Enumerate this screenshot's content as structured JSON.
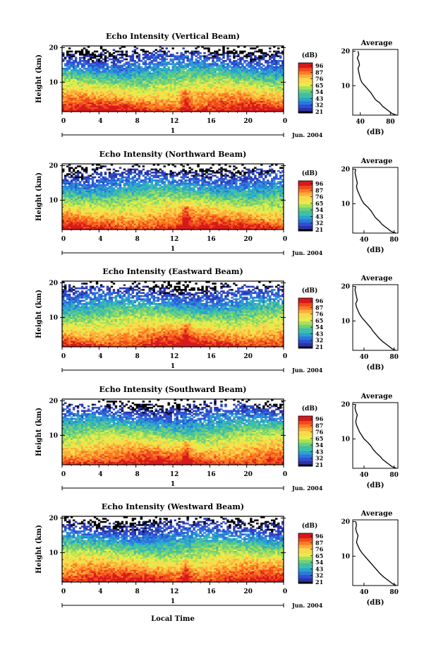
{
  "figure": {
    "xlabel": "Local Time",
    "date_label": "1",
    "month_label": "Jun. 2004",
    "colorbar_unit": "(dB)",
    "colorbar_ticks": [
      "96",
      "87",
      "76",
      "65",
      "54",
      "43",
      "32",
      "21"
    ],
    "colorbar_colors": [
      "#d7191c",
      "#f04a1c",
      "#fb7b22",
      "#fdae3d",
      "#fbd84a",
      "#e4ee4c",
      "#a8e05b",
      "#6fcf7a",
      "#3fbfa6",
      "#2aa2d1",
      "#2d78dc",
      "#2f4fd3",
      "#2b34a8"
    ],
    "profile_title": "Average",
    "profile_xlabel": "(dB)"
  },
  "chart_data": [
    {
      "type": "heatmap",
      "title": "Echo Intensity (Vertical Beam)",
      "ylabel": "Height (km)",
      "x_ticks": [
        "0",
        "4",
        "8",
        "12",
        "16",
        "20",
        "0"
      ],
      "y_ticks": [
        "20",
        "10"
      ],
      "xlim": [
        0,
        24
      ],
      "ylim": [
        1.5,
        20.5
      ],
      "colorbar": {
        "unit": "dB",
        "range": [
          21,
          96
        ]
      },
      "profile": {
        "title": "Average",
        "x_ticks": [
          "40",
          "80"
        ],
        "y_ticks": [
          "20",
          "10"
        ],
        "xlim": [
          30,
          90
        ],
        "heights": [
          1.5,
          2,
          3,
          4,
          5,
          6,
          7,
          8,
          9,
          10,
          11,
          12,
          13,
          14,
          15,
          16,
          17,
          18,
          19,
          20
        ],
        "values": [
          88,
          82,
          76,
          70,
          66,
          60,
          57,
          54,
          50,
          46,
          42,
          40,
          39,
          38,
          37,
          39,
          38,
          36,
          38,
          37
        ]
      }
    },
    {
      "type": "heatmap",
      "title": "Echo Intensity (Northward Beam)",
      "ylabel": "Height (km)",
      "x_ticks": [
        "0",
        "4",
        "8",
        "12",
        "16",
        "20",
        "0"
      ],
      "y_ticks": [
        "20",
        "10"
      ],
      "xlim": [
        0,
        24
      ],
      "ylim": [
        1.5,
        20.5
      ],
      "colorbar": {
        "unit": "dB",
        "range": [
          21,
          96
        ]
      },
      "profile": {
        "title": "Average",
        "x_ticks": [
          "40",
          "80"
        ],
        "y_ticks": [
          "20",
          "10"
        ],
        "xlim": [
          25,
          85
        ],
        "heights": [
          1.5,
          2,
          3,
          4,
          5,
          6,
          7,
          8,
          9,
          10,
          11,
          12,
          13,
          14,
          15,
          16,
          17,
          18,
          19,
          20
        ],
        "values": [
          82,
          76,
          70,
          64,
          60,
          55,
          52,
          49,
          45,
          40,
          37,
          35,
          33,
          31,
          30,
          31,
          30,
          29,
          28,
          29
        ]
      }
    },
    {
      "type": "heatmap",
      "title": "Echo Intensity (Eastward Beam)",
      "ylabel": "Height (km)",
      "x_ticks": [
        "0",
        "4",
        "8",
        "12",
        "16",
        "20",
        "0"
      ],
      "y_ticks": [
        "20",
        "10"
      ],
      "xlim": [
        0,
        24
      ],
      "ylim": [
        1.5,
        20.5
      ],
      "colorbar": {
        "unit": "dB",
        "range": [
          21,
          96
        ]
      },
      "profile": {
        "title": "Average",
        "x_ticks": [
          "40",
          "80"
        ],
        "y_ticks": [
          "20",
          "10"
        ],
        "xlim": [
          25,
          85
        ],
        "heights": [
          1.5,
          2,
          3,
          4,
          5,
          6,
          7,
          8,
          9,
          10,
          11,
          12,
          13,
          14,
          15,
          16,
          17,
          18,
          19,
          20
        ],
        "values": [
          82,
          77,
          71,
          65,
          60,
          56,
          52,
          49,
          45,
          41,
          37,
          34,
          32,
          30,
          29,
          31,
          30,
          29,
          28,
          29
        ]
      }
    },
    {
      "type": "heatmap",
      "title": "Echo Intensity (Southward Beam)",
      "ylabel": "Height (km)",
      "x_ticks": [
        "0",
        "4",
        "8",
        "12",
        "16",
        "20",
        "0"
      ],
      "y_ticks": [
        "20",
        "10"
      ],
      "xlim": [
        0,
        24
      ],
      "ylim": [
        1.5,
        20.5
      ],
      "colorbar": {
        "unit": "dB",
        "range": [
          21,
          96
        ]
      },
      "profile": {
        "title": "Average",
        "x_ticks": [
          "40",
          "80"
        ],
        "y_ticks": [
          "20",
          "10"
        ],
        "xlim": [
          25,
          85
        ],
        "heights": [
          1.5,
          2,
          3,
          4,
          5,
          6,
          7,
          8,
          9,
          10,
          11,
          12,
          13,
          14,
          15,
          16,
          17,
          18,
          19,
          20
        ],
        "values": [
          83,
          77,
          71,
          65,
          61,
          56,
          52,
          49,
          45,
          40,
          37,
          34,
          32,
          30,
          29,
          30,
          31,
          29,
          28,
          29
        ]
      }
    },
    {
      "type": "heatmap",
      "title": "Echo Intensity (Westward Beam)",
      "ylabel": "Height (km)",
      "x_ticks": [
        "0",
        "4",
        "8",
        "12",
        "16",
        "20",
        "0"
      ],
      "y_ticks": [
        "20",
        "10"
      ],
      "xlim": [
        0,
        24
      ],
      "ylim": [
        1.5,
        20.5
      ],
      "colorbar": {
        "unit": "dB",
        "range": [
          21,
          96
        ]
      },
      "profile": {
        "title": "Average",
        "x_ticks": [
          "40",
          "80"
        ],
        "y_ticks": [
          "20",
          "10"
        ],
        "xlim": [
          25,
          85
        ],
        "heights": [
          1.5,
          2,
          3,
          4,
          5,
          6,
          7,
          8,
          9,
          10,
          11,
          12,
          13,
          14,
          15,
          16,
          17,
          18,
          19,
          20
        ],
        "values": [
          83,
          78,
          72,
          66,
          61,
          57,
          53,
          49,
          45,
          41,
          37,
          34,
          32,
          30,
          31,
          32,
          30,
          29,
          30,
          29
        ]
      }
    }
  ]
}
